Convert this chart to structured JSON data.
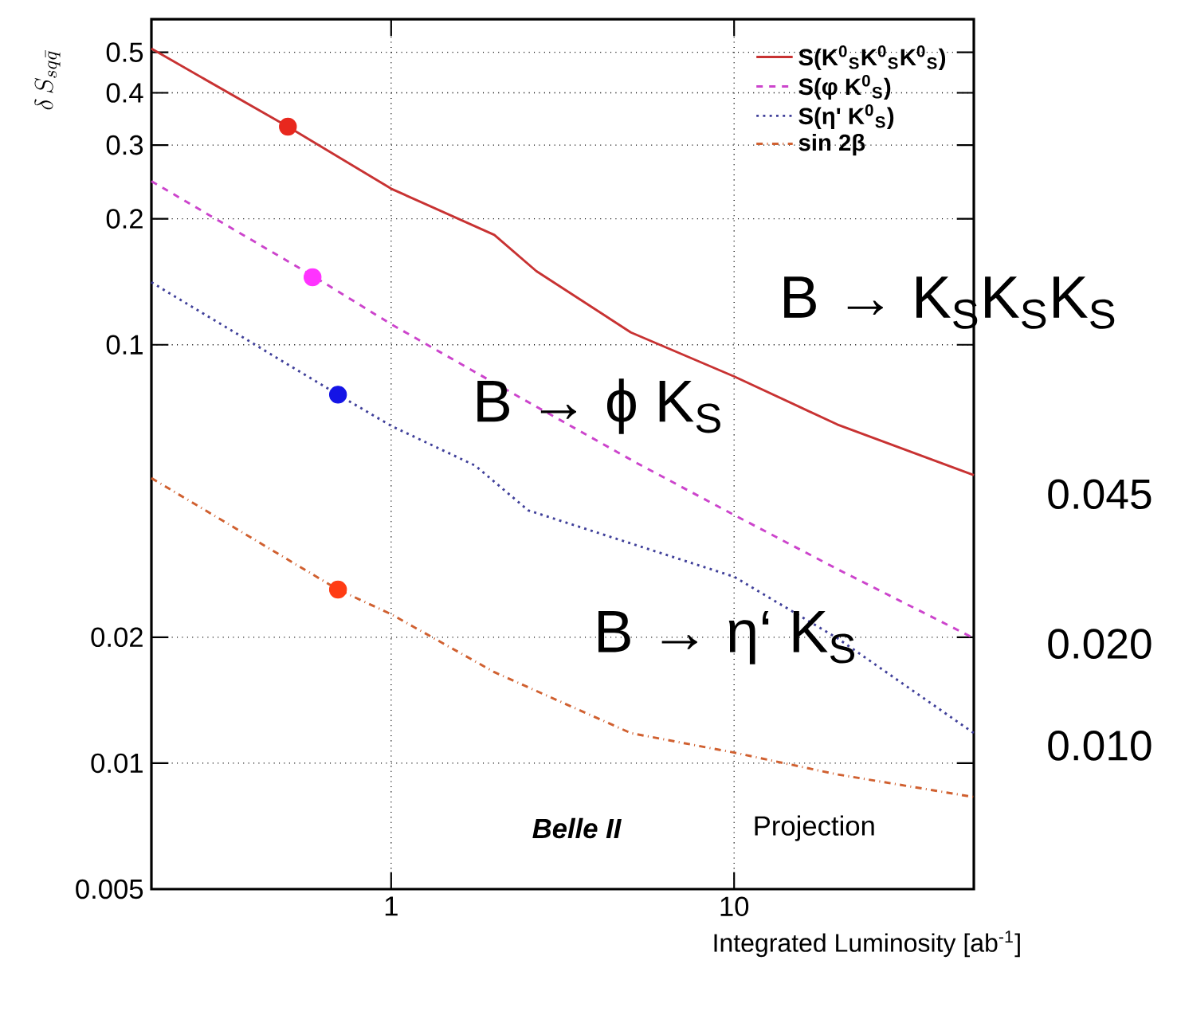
{
  "chart_data": {
    "type": "line",
    "xlabel": "Integrated Luminosity [ab$^{-1}$]",
    "ylabel": "\\delta\\, S_{sq\\bar{q}}",
    "log": "xy",
    "grid": true,
    "legend": "top right",
    "xlim": [
      0.2,
      50
    ],
    "xticks": [
      1,
      10
    ],
    "ylim": [
      0.005,
      0.6
    ],
    "yticks": [
      0.005,
      0.01,
      0.02,
      0.1,
      0.2,
      0.3,
      0.4,
      0.5
    ],
    "series": [
      {
        "name": "S(K$^{0}$$_{S}$K$^{0}$$_{S}$K$^{0}$$_{S}$)",
        "line_style": "solid",
        "color": "#c83232",
        "x": [
          0.2,
          0.5,
          1,
          2,
          2.65,
          5,
          10,
          20,
          50
        ],
        "values": [
          0.51,
          0.332,
          0.236,
          0.183,
          0.15,
          0.107,
          0.084,
          0.0645,
          0.0488
        ]
      },
      {
        "name": "S(φ K$^{0}$$_{S}$)",
        "line_style": "dashed",
        "color": "#cc44cc",
        "x": [
          0.2,
          0.6,
          1,
          2,
          5.15,
          10,
          20,
          50
        ],
        "values": [
          0.246,
          0.145,
          0.112,
          0.081,
          0.0524,
          0.0392,
          0.0291,
          0.0199
        ]
      },
      {
        "name": "S(η' K$^{0}$$_{S}$)",
        "line_style": "dotted",
        "color": "#40409a",
        "x": [
          0.2,
          0.7,
          1,
          1.76,
          2.51,
          10,
          20,
          50
        ],
        "values": [
          0.141,
          0.076,
          0.064,
          0.0514,
          0.0402,
          0.0279,
          0.0199,
          0.0118
        ]
      },
      {
        "name": "sin 2β",
        "line_style": "dashdot",
        "color": "#d06030",
        "x": [
          0.2,
          0.7,
          1,
          2,
          5,
          10,
          20,
          50
        ],
        "values": [
          0.048,
          0.026,
          0.0227,
          0.0165,
          0.0118,
          0.0106,
          0.0094,
          0.0083
        ]
      },
      {
        "type": "scatter",
        "marker": "circle",
        "colors": [
          "#e8281e",
          "#ff33ff",
          "#1414e6",
          "#ff3c14"
        ],
        "x": [
          0.5,
          0.59,
          0.7,
          0.7
        ],
        "values": [
          0.332,
          0.145,
          0.076,
          0.026
        ]
      }
    ],
    "annotations": [
      "B → K$_{S}$K$_{S}$K$_{S}$",
      "B → ϕ K$_{S}$",
      "B → η‘ K$_{S}$",
      "0.045",
      "0.020",
      "0.010",
      "Belle II",
      "Projection"
    ]
  }
}
